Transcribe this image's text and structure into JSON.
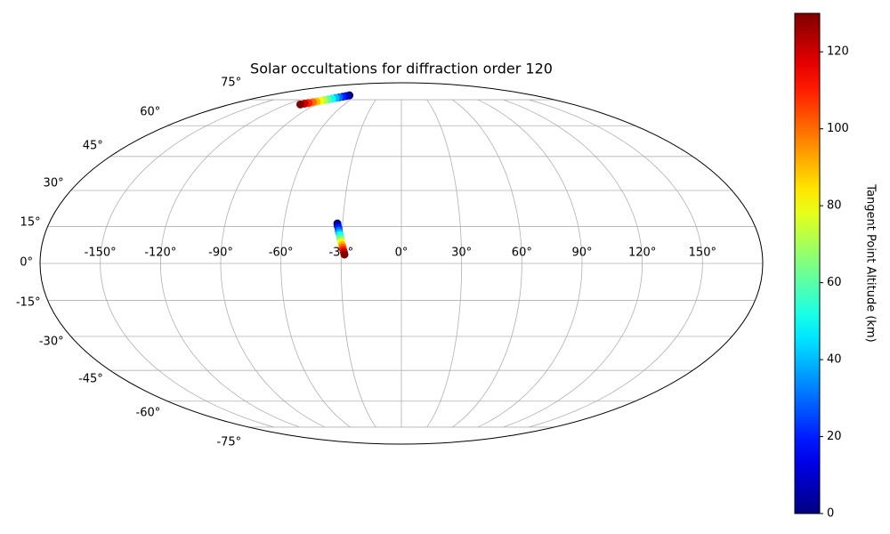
{
  "chart_data": {
    "type": "scatter",
    "projection": "mollweide",
    "title": "Solar occultations for diffraction order 120",
    "x": [
      -70.6,
      -73.3,
      -76.0,
      -78.8,
      -81.5,
      -84.2,
      -86.9,
      -89.7,
      -92.4,
      -95.1,
      -97.8,
      -100.6,
      -103.3,
      -106.0,
      -32.7,
      -32.4,
      -32.0,
      -31.7,
      -31.4,
      -31.0,
      -30.7,
      -30.4,
      -30.1,
      -29.7,
      -29.4,
      -29.1,
      -28.7,
      -28.4
    ],
    "y": [
      78.0,
      77.5,
      77.1,
      76.6,
      76.2,
      75.7,
      75.2,
      74.8,
      74.3,
      73.8,
      73.4,
      72.9,
      72.5,
      72.0,
      16.2,
      15.2,
      14.3,
      13.3,
      12.3,
      11.4,
      10.4,
      9.4,
      8.4,
      7.5,
      6.5,
      5.5,
      4.6,
      3.6
    ],
    "c": [
      0,
      10,
      20,
      30,
      40,
      50,
      60,
      70,
      80,
      90,
      100,
      110,
      120,
      130,
      0,
      10,
      20,
      30,
      40,
      50,
      60,
      70,
      80,
      90,
      100,
      110,
      120,
      130
    ],
    "colormap": "jet",
    "clim": [
      0,
      130
    ],
    "cticks": [
      0,
      20,
      40,
      60,
      80,
      100,
      120
    ],
    "colorbar_label": "Tangent Point Altitude (km)",
    "xticks": [
      {
        "value": -150,
        "label": "-150°"
      },
      {
        "value": -120,
        "label": "-120°"
      },
      {
        "value": -90,
        "label": "-90°"
      },
      {
        "value": -60,
        "label": "-60°"
      },
      {
        "value": -30,
        "label": "-30°"
      },
      {
        "value": 0,
        "label": "0°"
      },
      {
        "value": 30,
        "label": "30°"
      },
      {
        "value": 60,
        "label": "60°"
      },
      {
        "value": 90,
        "label": "90°"
      },
      {
        "value": 120,
        "label": "120°"
      },
      {
        "value": 150,
        "label": "150°"
      }
    ],
    "yticks": [
      {
        "value": -75,
        "label": "-75°"
      },
      {
        "value": -60,
        "label": "-60°"
      },
      {
        "value": -45,
        "label": "-45°"
      },
      {
        "value": -30,
        "label": "-30°"
      },
      {
        "value": -15,
        "label": "-15°"
      },
      {
        "value": 0,
        "label": "0°"
      },
      {
        "value": 15,
        "label": "15°"
      },
      {
        "value": 30,
        "label": "30°"
      },
      {
        "value": 45,
        "label": "45°"
      },
      {
        "value": 60,
        "label": "60°"
      },
      {
        "value": 75,
        "label": "75°"
      }
    ],
    "grid": true
  }
}
